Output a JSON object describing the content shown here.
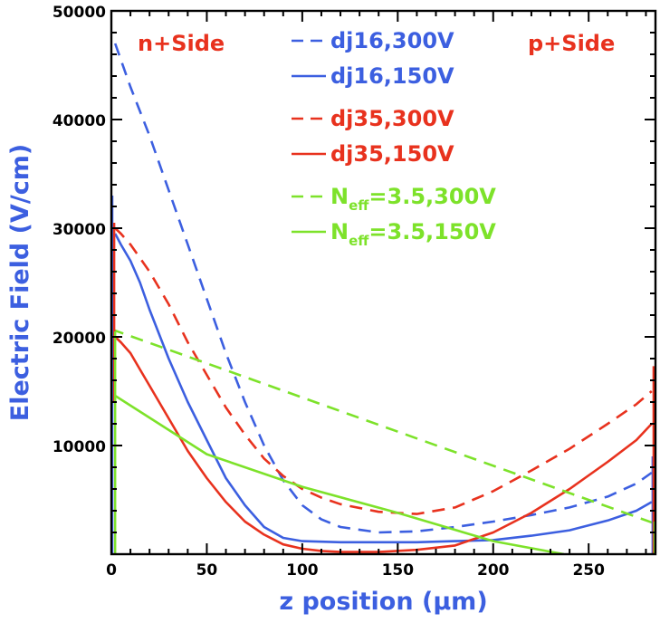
{
  "chart_data": {
    "type": "line",
    "xlabel": "z position (μm)",
    "ylabel": "Electric Field (V/cm)",
    "xlim": [
      0,
      285
    ],
    "ylim": [
      0,
      50000
    ],
    "x_ticks": [
      0,
      50,
      100,
      150,
      200,
      250
    ],
    "y_ticks": [
      10000,
      20000,
      30000,
      40000,
      50000
    ],
    "annotations": [
      {
        "text": "n+Side",
        "color": "#e8321e"
      },
      {
        "text": "p+Side",
        "color": "#e8321e"
      }
    ],
    "series": [
      {
        "name": "dj16,300V",
        "color": "#3c5fe0",
        "dash": true,
        "x": [
          2,
          5,
          10,
          20,
          30,
          40,
          50,
          60,
          70,
          80,
          90,
          100,
          110,
          120,
          140,
          160,
          180,
          200,
          220,
          240,
          260,
          275,
          283
        ],
        "y": [
          47000,
          45500,
          43000,
          38500,
          33500,
          28500,
          23500,
          18500,
          14000,
          10000,
          6800,
          4500,
          3200,
          2500,
          2000,
          2100,
          2500,
          3000,
          3600,
          4300,
          5300,
          6500,
          7500
        ]
      },
      {
        "name": "dj16,150V",
        "color": "#3c5fe0",
        "dash": false,
        "x": [
          2,
          5,
          10,
          15,
          20,
          30,
          40,
          50,
          60,
          70,
          80,
          90,
          100,
          120,
          140,
          160,
          180,
          200,
          220,
          240,
          260,
          275,
          283
        ],
        "y": [
          29500,
          28500,
          27000,
          25000,
          22500,
          18000,
          14000,
          10500,
          7000,
          4500,
          2500,
          1500,
          1200,
          1100,
          1100,
          1100,
          1200,
          1300,
          1700,
          2200,
          3100,
          4000,
          4800
        ]
      },
      {
        "name": "dj35,300V",
        "color": "#e8321e",
        "dash": true,
        "x": [
          2,
          5,
          10,
          20,
          30,
          40,
          50,
          60,
          70,
          80,
          90,
          100,
          110,
          120,
          140,
          160,
          180,
          200,
          220,
          240,
          260,
          275,
          283
        ],
        "y": [
          30000,
          29500,
          28500,
          26000,
          23000,
          19500,
          16500,
          13500,
          11000,
          8800,
          7200,
          6000,
          5200,
          4600,
          3900,
          3700,
          4300,
          5800,
          7700,
          9700,
          12000,
          13800,
          15000
        ]
      },
      {
        "name": "dj35,150V",
        "color": "#e8321e",
        "dash": false,
        "x": [
          2,
          5,
          10,
          15,
          20,
          30,
          40,
          50,
          60,
          70,
          80,
          90,
          100,
          110,
          120,
          140,
          160,
          180,
          200,
          220,
          240,
          260,
          275,
          283
        ],
        "y": [
          20000,
          19500,
          18500,
          17000,
          15500,
          12500,
          9500,
          7000,
          4800,
          3000,
          1800,
          900,
          500,
          300,
          200,
          200,
          400,
          800,
          2000,
          3800,
          6000,
          8500,
          10500,
          12000
        ]
      },
      {
        "name": "N_eff=3.5,300V",
        "color": "#7de22a",
        "dash": true,
        "x": [
          0,
          285
        ],
        "y": [
          20700,
          2800
        ]
      },
      {
        "name": "N_eff=3.5,150V",
        "color": "#7de22a",
        "dash": false,
        "x": [
          0,
          50,
          100,
          150,
          200,
          237
        ],
        "y": [
          14800,
          9200,
          6200,
          3800,
          1200,
          0
        ]
      }
    ],
    "legend": [
      {
        "label": "dj16,300V",
        "base": "dj16,300V",
        "sub": "",
        "rest": "",
        "color": "#3c5fe0",
        "dash": true
      },
      {
        "label": "dj16,150V",
        "base": "dj16,150V",
        "sub": "",
        "rest": "",
        "color": "#3c5fe0",
        "dash": false
      },
      {
        "label": "dj35,300V",
        "base": "dj35,300V",
        "sub": "",
        "rest": "",
        "color": "#e8321e",
        "dash": true
      },
      {
        "label": "dj35,150V",
        "base": "dj35,150V",
        "sub": "",
        "rest": "",
        "color": "#e8321e",
        "dash": false
      },
      {
        "label": "Neff=3.5,300V",
        "base": "N",
        "sub": "eff",
        "rest": "=3.5,300V",
        "color": "#7de22a",
        "dash": true
      },
      {
        "label": "Neff=3.5,150V",
        "base": "N",
        "sub": "eff",
        "rest": "=3.5,150V",
        "color": "#7de22a",
        "dash": false
      }
    ],
    "colors": {
      "axis": "#000000",
      "ylabel": "#3c5fe0",
      "xlabel": "#3c5fe0"
    }
  }
}
